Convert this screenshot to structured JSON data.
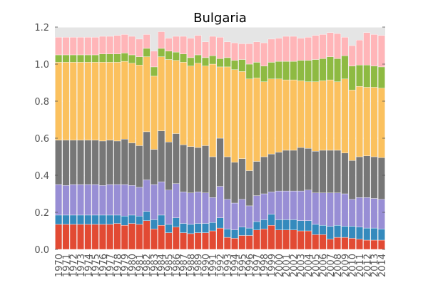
{
  "chart_data": {
    "type": "bar",
    "stacked": true,
    "title": "Bulgaria",
    "xlabel": "",
    "ylabel": "",
    "ylim": [
      0,
      1.2
    ],
    "yticks": [
      "0.0",
      "0.2",
      "0.4",
      "0.6",
      "0.8",
      "1.0",
      "1.2"
    ],
    "grid": true,
    "legend": "none",
    "categories": [
      "1970",
      "1971",
      "1972",
      "1973",
      "1974",
      "1975",
      "1976",
      "1977",
      "1978",
      "1979",
      "1980",
      "1981",
      "1982",
      "1983",
      "1984",
      "1985",
      "1986",
      "1987",
      "1988",
      "1989",
      "1990",
      "1991",
      "1992",
      "1993",
      "1994",
      "1995",
      "1996",
      "1997",
      "1998",
      "1999",
      "2000",
      "2001",
      "2002",
      "2003",
      "2004",
      "2005",
      "2006",
      "2007",
      "2008",
      "2009",
      "2010",
      "2011",
      "2012",
      "2013",
      "2014"
    ],
    "series": [
      {
        "color": "#E24A33",
        "values": [
          0.135,
          0.135,
          0.135,
          0.135,
          0.135,
          0.135,
          0.135,
          0.135,
          0.14,
          0.13,
          0.14,
          0.135,
          0.155,
          0.11,
          0.13,
          0.09,
          0.12,
          0.09,
          0.085,
          0.09,
          0.09,
          0.1,
          0.115,
          0.065,
          0.06,
          0.075,
          0.075,
          0.105,
          0.11,
          0.13,
          0.105,
          0.105,
          0.105,
          0.1,
          0.1,
          0.08,
          0.08,
          0.055,
          0.065,
          0.065,
          0.06,
          0.055,
          0.05,
          0.05,
          0.05
        ]
      },
      {
        "color": "#348ABD",
        "values": [
          0.05,
          0.05,
          0.05,
          0.05,
          0.05,
          0.05,
          0.05,
          0.05,
          0.045,
          0.05,
          0.045,
          0.045,
          0.05,
          0.05,
          0.055,
          0.045,
          0.05,
          0.05,
          0.05,
          0.05,
          0.05,
          0.045,
          0.055,
          0.045,
          0.045,
          0.045,
          0.04,
          0.045,
          0.05,
          0.06,
          0.055,
          0.055,
          0.055,
          0.055,
          0.055,
          0.055,
          0.05,
          0.07,
          0.065,
          0.06,
          0.065,
          0.065,
          0.065,
          0.065,
          0.06
        ]
      },
      {
        "color": "#988ED5",
        "values": [
          0.165,
          0.16,
          0.165,
          0.165,
          0.165,
          0.165,
          0.16,
          0.165,
          0.165,
          0.17,
          0.16,
          0.155,
          0.17,
          0.19,
          0.18,
          0.185,
          0.185,
          0.17,
          0.17,
          0.17,
          0.165,
          0.135,
          0.17,
          0.16,
          0.145,
          0.15,
          0.12,
          0.14,
          0.14,
          0.12,
          0.155,
          0.155,
          0.155,
          0.16,
          0.165,
          0.17,
          0.175,
          0.18,
          0.175,
          0.175,
          0.145,
          0.16,
          0.165,
          0.16,
          0.16
        ]
      },
      {
        "color": "#777777",
        "values": [
          0.24,
          0.245,
          0.24,
          0.24,
          0.24,
          0.24,
          0.24,
          0.24,
          0.235,
          0.245,
          0.23,
          0.225,
          0.26,
          0.19,
          0.275,
          0.26,
          0.27,
          0.255,
          0.25,
          0.24,
          0.255,
          0.22,
          0.26,
          0.23,
          0.22,
          0.22,
          0.19,
          0.185,
          0.2,
          0.205,
          0.21,
          0.22,
          0.22,
          0.235,
          0.225,
          0.225,
          0.23,
          0.23,
          0.23,
          0.22,
          0.21,
          0.22,
          0.225,
          0.225,
          0.225
        ]
      },
      {
        "color": "#FBC15E",
        "values": [
          0.42,
          0.42,
          0.42,
          0.42,
          0.42,
          0.42,
          0.425,
          0.42,
          0.425,
          0.42,
          0.43,
          0.435,
          0.405,
          0.395,
          0.4,
          0.445,
          0.395,
          0.445,
          0.435,
          0.455,
          0.43,
          0.5,
          0.385,
          0.485,
          0.5,
          0.47,
          0.495,
          0.45,
          0.405,
          0.405,
          0.395,
          0.38,
          0.38,
          0.36,
          0.36,
          0.375,
          0.375,
          0.38,
          0.37,
          0.4,
          0.38,
          0.38,
          0.37,
          0.375,
          0.375
        ]
      },
      {
        "color": "#8EBA42",
        "values": [
          0.04,
          0.04,
          0.04,
          0.04,
          0.04,
          0.04,
          0.045,
          0.045,
          0.045,
          0.045,
          0.045,
          0.045,
          0.045,
          0.05,
          0.045,
          0.045,
          0.045,
          0.045,
          0.045,
          0.045,
          0.045,
          0.045,
          0.045,
          0.05,
          0.05,
          0.065,
          0.08,
          0.085,
          0.085,
          0.09,
          0.095,
          0.1,
          0.1,
          0.11,
          0.115,
          0.12,
          0.12,
          0.125,
          0.125,
          0.125,
          0.13,
          0.115,
          0.12,
          0.115,
          0.115
        ]
      },
      {
        "color": "#FFB5B8",
        "values": [
          0.095,
          0.095,
          0.095,
          0.095,
          0.095,
          0.095,
          0.095,
          0.095,
          0.1,
          0.1,
          0.1,
          0.095,
          0.075,
          0.085,
          0.09,
          0.07,
          0.085,
          0.095,
          0.105,
          0.105,
          0.085,
          0.105,
          0.115,
          0.085,
          0.095,
          0.085,
          0.11,
          0.11,
          0.125,
          0.125,
          0.125,
          0.135,
          0.135,
          0.12,
          0.125,
          0.13,
          0.13,
          0.13,
          0.135,
          0.1,
          0.11,
          0.135,
          0.175,
          0.17,
          0.17
        ]
      }
    ]
  }
}
